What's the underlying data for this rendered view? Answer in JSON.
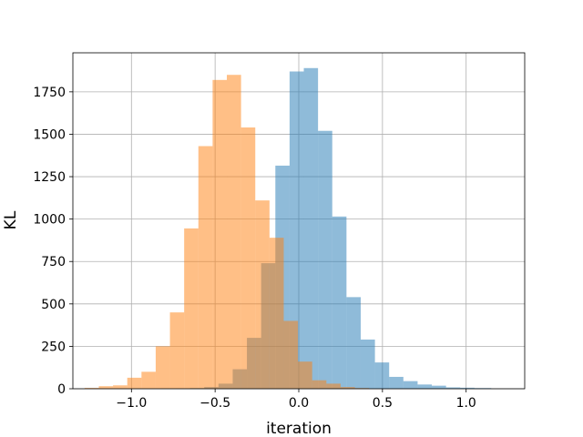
{
  "chart_data": {
    "type": "bar",
    "title": "",
    "xlabel": "iteration",
    "ylabel": "KL",
    "xlim": [
      -1.35,
      1.35
    ],
    "ylim": [
      0,
      1980
    ],
    "grid": true,
    "legend": "none",
    "x_ticks": [
      {
        "value": -1.0,
        "label": "−1.0"
      },
      {
        "value": -0.5,
        "label": "−0.5"
      },
      {
        "value": 0.0,
        "label": "0.0"
      },
      {
        "value": 0.5,
        "label": "0.5"
      },
      {
        "value": 1.0,
        "label": "1.0"
      }
    ],
    "y_ticks": [
      {
        "value": 0,
        "label": "0"
      },
      {
        "value": 250,
        "label": "250"
      },
      {
        "value": 500,
        "label": "500"
      },
      {
        "value": 750,
        "label": "750"
      },
      {
        "value": 1000,
        "label": "1000"
      },
      {
        "value": 1250,
        "label": "1250"
      },
      {
        "value": 1500,
        "label": "1500"
      },
      {
        "value": 1750,
        "label": "1750"
      }
    ],
    "series": [
      {
        "color": "#1f77b4",
        "opacity": 0.5,
        "bins": [
          [
            -0.82,
            -0.735,
            1
          ],
          [
            -0.735,
            -0.65,
            2
          ],
          [
            -0.65,
            -0.565,
            4
          ],
          [
            -0.565,
            -0.48,
            10
          ],
          [
            -0.48,
            -0.395,
            30
          ],
          [
            -0.395,
            -0.31,
            115
          ],
          [
            -0.31,
            -0.225,
            300
          ],
          [
            -0.225,
            -0.14,
            740
          ],
          [
            -0.14,
            -0.055,
            1315
          ],
          [
            -0.055,
            0.03,
            1870
          ],
          [
            0.03,
            0.115,
            1890
          ],
          [
            0.115,
            0.2,
            1520
          ],
          [
            0.2,
            0.285,
            1015
          ],
          [
            0.285,
            0.37,
            540
          ],
          [
            0.37,
            0.455,
            290
          ],
          [
            0.455,
            0.54,
            155
          ],
          [
            0.54,
            0.625,
            70
          ],
          [
            0.625,
            0.71,
            45
          ],
          [
            0.71,
            0.795,
            25
          ],
          [
            0.795,
            0.88,
            18
          ],
          [
            0.88,
            0.965,
            8
          ],
          [
            0.965,
            1.05,
            6
          ],
          [
            1.05,
            1.15,
            4
          ]
        ]
      },
      {
        "color": "#ff7f0e",
        "opacity": 0.5,
        "bins": [
          [
            -1.28,
            -1.195,
            5
          ],
          [
            -1.195,
            -1.11,
            15
          ],
          [
            -1.11,
            -1.025,
            20
          ],
          [
            -1.025,
            -0.94,
            65
          ],
          [
            -0.94,
            -0.855,
            100
          ],
          [
            -0.855,
            -0.77,
            250
          ],
          [
            -0.77,
            -0.685,
            450
          ],
          [
            -0.685,
            -0.6,
            945
          ],
          [
            -0.6,
            -0.515,
            1430
          ],
          [
            -0.515,
            -0.43,
            1820
          ],
          [
            -0.43,
            -0.345,
            1850
          ],
          [
            -0.345,
            -0.26,
            1540
          ],
          [
            -0.26,
            -0.175,
            1110
          ],
          [
            -0.175,
            -0.09,
            890
          ],
          [
            -0.09,
            -0.005,
            400
          ],
          [
            -0.005,
            0.08,
            160
          ],
          [
            0.08,
            0.165,
            50
          ],
          [
            0.165,
            0.25,
            30
          ],
          [
            0.25,
            0.335,
            10
          ],
          [
            0.335,
            0.42,
            4
          ]
        ]
      }
    ]
  }
}
